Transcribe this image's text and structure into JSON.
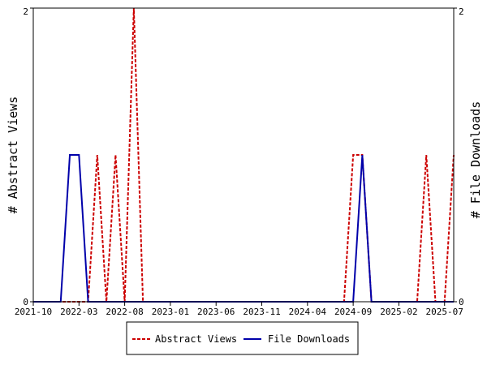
{
  "chart_data": {
    "type": "line",
    "title": "",
    "x_axis": {
      "type": "date",
      "range": [
        "2021-10",
        "2025-08"
      ],
      "ticks": [
        "2021-10",
        "2022-03",
        "2022-08",
        "2023-01",
        "2023-06",
        "2023-11",
        "2024-04",
        "2024-09",
        "2025-02",
        "2025-07"
      ]
    },
    "y_left": {
      "label": "# Abstract Views",
      "range": [
        0,
        2
      ],
      "ticks": [
        "0",
        "2"
      ]
    },
    "y_right": {
      "label": "# File Downloads",
      "range": [
        0,
        2
      ],
      "ticks": [
        "0",
        "2"
      ]
    },
    "grid": false,
    "legend_position": "bottom-center",
    "series": [
      {
        "name": "Abstract Views",
        "axis": "left",
        "color": "#cc0000",
        "style": "dashed",
        "points": [
          [
            "2021-10",
            0
          ],
          [
            "2022-04",
            0
          ],
          [
            "2022-05",
            1
          ],
          [
            "2022-06",
            0
          ],
          [
            "2022-07",
            1
          ],
          [
            "2022-08",
            0
          ],
          [
            "2022-09",
            2
          ],
          [
            "2022-10",
            0
          ],
          [
            "2024-08",
            0
          ],
          [
            "2024-09",
            1
          ],
          [
            "2024-10",
            1
          ],
          [
            "2024-11",
            0
          ],
          [
            "2025-04",
            0
          ],
          [
            "2025-05",
            1
          ],
          [
            "2025-06",
            0
          ],
          [
            "2025-07",
            0
          ],
          [
            "2025-08",
            1
          ]
        ]
      },
      {
        "name": "File Downloads",
        "axis": "right",
        "color": "#0000aa",
        "style": "solid",
        "points": [
          [
            "2021-10",
            0
          ],
          [
            "2022-01",
            0
          ],
          [
            "2022-02",
            1
          ],
          [
            "2022-03",
            1
          ],
          [
            "2022-04",
            0
          ],
          [
            "2024-09",
            0
          ],
          [
            "2024-10",
            1
          ],
          [
            "2024-11",
            0
          ],
          [
            "2025-08",
            0
          ]
        ]
      }
    ]
  }
}
